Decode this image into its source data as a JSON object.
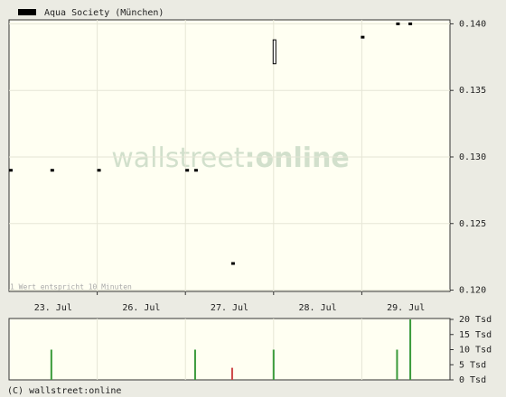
{
  "chart_data": {
    "type": "candlestick",
    "legend": "Aqua Society (München)",
    "watermark": [
      "wallstreet",
      ":online"
    ],
    "note": "1 Wert entspricht 10 Minuten",
    "footer": "(C) wallstreet:online",
    "xlim": [
      0,
      5
    ],
    "xticks": [
      {
        "value": 0.5,
        "label": "23. Jul"
      },
      {
        "value": 1.5,
        "label": "26. Jul"
      },
      {
        "value": 2.5,
        "label": "27. Jul"
      },
      {
        "value": 3.5,
        "label": "28. Jul"
      },
      {
        "value": 4.5,
        "label": "29. Jul"
      }
    ],
    "ylim": [
      0.1199,
      0.1403
    ],
    "yticks": [
      {
        "value": 0.14,
        "label": "0.140"
      },
      0.135,
      {
        "value": 0.13,
        "label": "0.130"
      },
      0.125,
      {
        "value": 0.12,
        "label": "0.120"
      }
    ],
    "grid": true,
    "series": [
      {
        "name": "Aqua Society (München)",
        "color": "#000000",
        "x": [
          0.02,
          0.49,
          1.02,
          2.02,
          2.12,
          2.54,
          3.01,
          4.01,
          4.41,
          4.55
        ],
        "open": [
          0.129,
          0.129,
          0.129,
          0.129,
          0.129,
          0.122,
          0.1388,
          0.139,
          0.14,
          0.14
        ],
        "close": [
          0.129,
          0.129,
          0.129,
          0.129,
          0.129,
          0.122,
          0.137,
          0.139,
          0.14,
          0.14
        ]
      }
    ],
    "volume": {
      "x": [
        0.48,
        2.11,
        2.53,
        3.0,
        4.4,
        4.55
      ],
      "values": [
        10,
        10,
        4,
        10,
        10,
        20
      ],
      "colors": [
        "#3a9a3a",
        "#3a9a3a",
        "#cc4444",
        "#3a9a3a",
        "#3a9a3a",
        "#3a9a3a"
      ],
      "ylim": [
        0,
        20.3
      ],
      "yticks": [
        {
          "value": 20,
          "label": "20 Tsd"
        },
        {
          "value": 15,
          "label": "15 Tsd"
        },
        {
          "value": 10,
          "label": "10 Tsd"
        },
        {
          "value": 5,
          "label": "5 Tsd"
        },
        {
          "value": 0,
          "label": "0 Tsd"
        }
      ]
    }
  }
}
